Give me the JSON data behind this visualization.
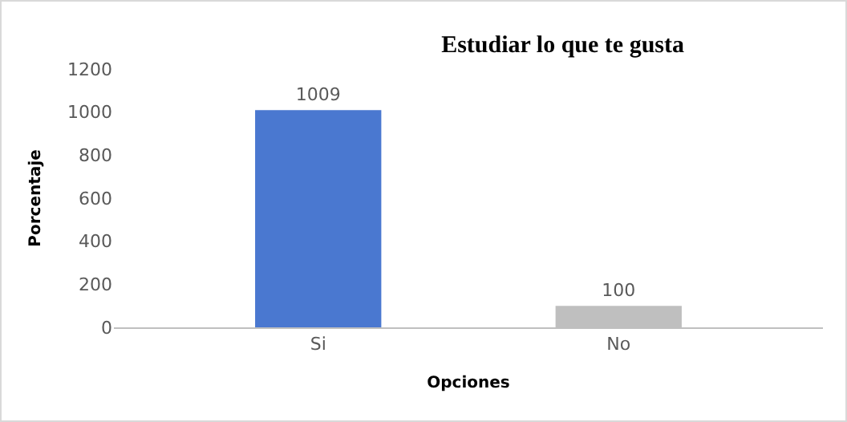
{
  "chart_data": {
    "type": "bar",
    "title": "Estudiar lo que te gusta",
    "xlabel": "Opciones",
    "ylabel": "Porcentaje",
    "categories": [
      "Si",
      "No"
    ],
    "values": [
      1009,
      100
    ],
    "colors": [
      "#4a78d0",
      "#bfbfbf"
    ],
    "ylim": [
      0,
      1200
    ],
    "yticks": [
      0,
      200,
      400,
      600,
      800,
      1000,
      1200
    ],
    "grid": false,
    "data_labels": true
  }
}
